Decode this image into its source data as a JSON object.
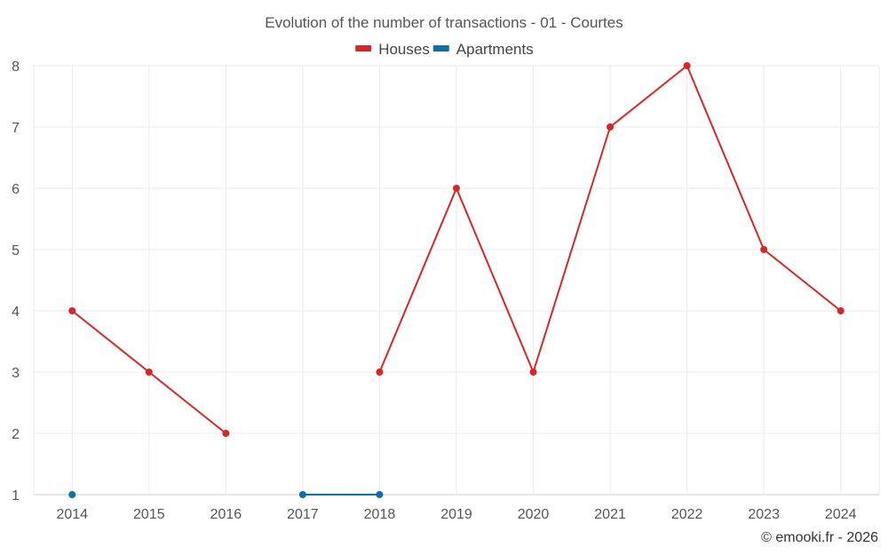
{
  "chart_data": {
    "type": "line",
    "title": "Evolution of the number of transactions - 01 - Courtes",
    "categories": [
      "2014",
      "2015",
      "2016",
      "2017",
      "2018",
      "2019",
      "2020",
      "2021",
      "2022",
      "2023",
      "2024"
    ],
    "series": [
      {
        "name": "Houses",
        "color": "#d62728",
        "values": [
          4,
          3,
          2,
          null,
          3,
          6,
          3,
          7,
          8,
          5,
          4
        ]
      },
      {
        "name": "Apartments",
        "color": "#0f6fa8",
        "values": [
          1,
          null,
          null,
          1,
          1,
          null,
          null,
          null,
          null,
          null,
          null
        ]
      }
    ],
    "ylim": [
      1,
      8
    ],
    "yticks": [
      1,
      2,
      3,
      4,
      5,
      6,
      7,
      8
    ],
    "xlabel": "",
    "ylabel": "",
    "grid": true,
    "legend_position": "top-center"
  },
  "credit": "© emooki.fr - 2026"
}
